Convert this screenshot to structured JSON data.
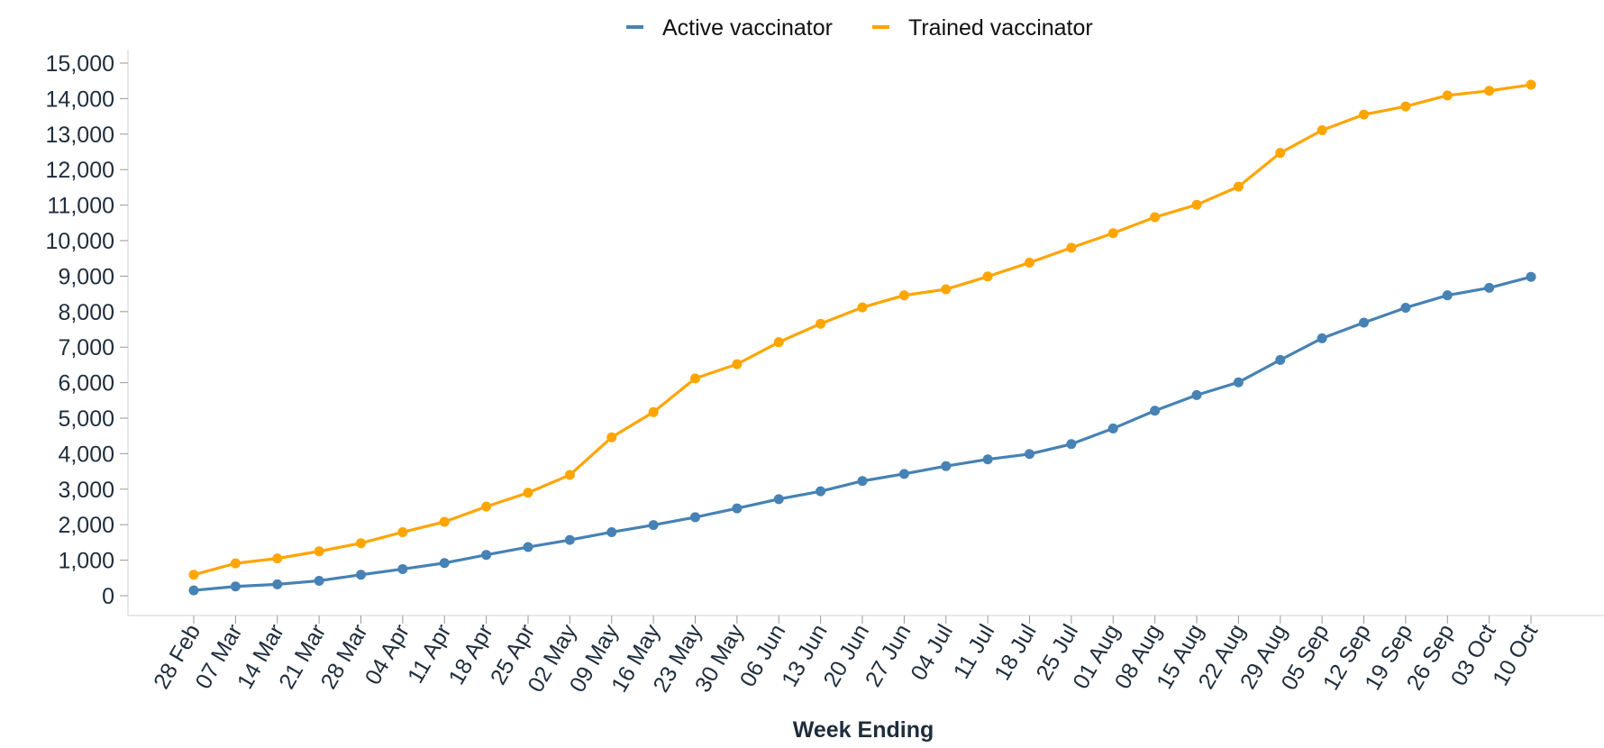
{
  "chart_data": {
    "type": "line",
    "title": "",
    "xlabel": "Week Ending",
    "ylabel": "",
    "categories": [
      "28 Feb",
      "07 Mar",
      "14 Mar",
      "21 Mar",
      "28 Mar",
      "04 Apr",
      "11 Apr",
      "18 Apr",
      "25 Apr",
      "02 May",
      "09 May",
      "16 May",
      "23 May",
      "30 May",
      "06 Jun",
      "13 Jun",
      "20 Jun",
      "27 Jun",
      "04 Jul",
      "11 Jul",
      "18 Jul",
      "25 Jul",
      "01 Aug",
      "08 Aug",
      "15 Aug",
      "22 Aug",
      "29 Aug",
      "05 Sep",
      "12 Sep",
      "19 Sep",
      "26 Sep",
      "03 Oct",
      "10 Oct"
    ],
    "ylim": [
      0,
      15000
    ],
    "yticks": [
      0,
      1000,
      2000,
      3000,
      4000,
      5000,
      6000,
      7000,
      8000,
      9000,
      10000,
      11000,
      12000,
      13000,
      14000,
      15000
    ],
    "ytick_labels": [
      "0",
      "1,000",
      "2,000",
      "3,000",
      "4,000",
      "5,000",
      "6,000",
      "7,000",
      "8,000",
      "9,000",
      "10,000",
      "11,000",
      "12,000",
      "13,000",
      "14,000",
      "15,000"
    ],
    "grid": false,
    "legend_position": "top-center",
    "series": [
      {
        "name": "Active vaccinator",
        "color": "#4682b4",
        "values": [
          150,
          260,
          320,
          420,
          590,
          750,
          920,
          1150,
          1370,
          1570,
          1790,
          1990,
          2210,
          2460,
          2720,
          2940,
          3230,
          3430,
          3650,
          3840,
          3990,
          4270,
          4710,
          5210,
          5650,
          6010,
          6640,
          7250,
          7690,
          8110,
          8460,
          8670,
          8980
        ]
      },
      {
        "name": "Trained vaccinator",
        "color": "#ffa500",
        "values": [
          590,
          910,
          1050,
          1250,
          1480,
          1790,
          2080,
          2510,
          2900,
          3400,
          4460,
          5170,
          6120,
          6520,
          7140,
          7660,
          8120,
          8460,
          8630,
          8990,
          9380,
          9800,
          10210,
          10660,
          11010,
          11520,
          12470,
          13110,
          13550,
          13780,
          14090,
          14220,
          14390
        ]
      }
    ]
  }
}
